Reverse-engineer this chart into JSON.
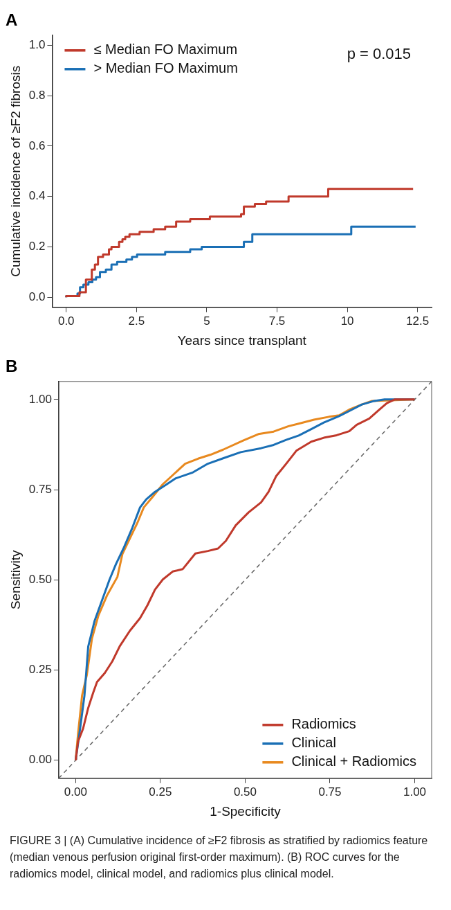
{
  "chart_data": [
    {
      "type": "step",
      "title": "A",
      "xlabel": "Years since transplant",
      "ylabel": "Cumulative incidence of ≥F2 fibrosis",
      "xlim": [
        -0.5,
        13
      ],
      "ylim": [
        -0.04,
        1.04
      ],
      "xticks": [
        {
          "value": 0,
          "label": "0.0"
        },
        2.5,
        5,
        7.5,
        10,
        12.5
      ],
      "yticks": [
        {
          "value": 0,
          "label": "0.0"
        },
        0.2,
        0.4,
        0.6,
        0.8,
        {
          "value": 1,
          "label": "1.0"
        }
      ],
      "grid": false,
      "legend": "top left",
      "marker": "none",
      "line_style": "solid",
      "annotations": [
        "p = 0.015"
      ],
      "series": [
        {
          "name": "≤ Median FO Maximum",
          "color": "#c0392b",
          "x": [
            0,
            0.47,
            0.7,
            0.91,
            1.02,
            1.13,
            1.31,
            1.52,
            1.61,
            1.88,
            2.0,
            2.1,
            2.25,
            2.61,
            3.11,
            3.34,
            3.52,
            3.91,
            4.41,
            5.11,
            6.22,
            6.32,
            6.71,
            7.11,
            7.91,
            9.32,
            10.02,
            12.34
          ],
          "values": [
            0,
            0.005,
            0.02,
            0.07,
            0.11,
            0.13,
            0.16,
            0.17,
            0.19,
            0.2,
            0.22,
            0.23,
            0.24,
            0.25,
            0.26,
            0.27,
            0.27,
            0.28,
            0.3,
            0.31,
            0.32,
            0.33,
            0.36,
            0.37,
            0.38,
            0.4,
            0.43,
            0.43
          ]
        },
        {
          "name": "> Median FO Maximum",
          "color": "#1a6fb5",
          "x": [
            0,
            0.4,
            0.49,
            0.61,
            0.79,
            0.93,
            1.06,
            1.2,
            1.41,
            1.61,
            1.81,
            2.02,
            2.14,
            2.34,
            2.52,
            3.52,
            4.41,
            4.55,
            4.82,
            6.32,
            6.62,
            10.14,
            10.23,
            12.43
          ],
          "values": [
            0,
            0.005,
            0.015,
            0.04,
            0.05,
            0.06,
            0.07,
            0.08,
            0.1,
            0.11,
            0.13,
            0.14,
            0.14,
            0.15,
            0.16,
            0.17,
            0.18,
            0.19,
            0.19,
            0.2,
            0.22,
            0.25,
            0.28,
            0.28
          ]
        }
      ]
    },
    {
      "type": "line",
      "title": "B",
      "xlabel": "1-Specificity",
      "ylabel": "Sensitivity",
      "xlim": [
        -0.05,
        1.05
      ],
      "ylim": [
        -0.05,
        1.05
      ],
      "xticks": [
        {
          "value": 0,
          "label": "0.00"
        },
        0.25,
        {
          "value": 0.5,
          "label": "0.50"
        },
        0.75,
        {
          "value": 1,
          "label": "1.00"
        }
      ],
      "yticks": [
        {
          "value": 0,
          "label": "0.00"
        },
        0.25,
        {
          "value": 0.5,
          "label": "0.50"
        },
        0.75,
        {
          "value": 1,
          "label": "1.00"
        }
      ],
      "grid": false,
      "legend": "bottom right",
      "marker": "none",
      "line_style": "solid",
      "annotations": [
        "FIGURE 3 | (A) Cumulative incidence of ≥F2 fibrosis as stratified by radiomics feature (median venous perfusion original first-order maximum). (B) ROC curves for the radiomics model, clinical model, and radiomics plus clinical model."
      ],
      "series": [
        {
          "name": "Radiomics",
          "color": "#c0392b",
          "x": [
            0,
            0.007,
            0.022,
            0.037,
            0.052,
            0.063,
            0.086,
            0.108,
            0.13,
            0.16,
            0.19,
            0.212,
            0.234,
            0.257,
            0.286,
            0.316,
            0.353,
            0.39,
            0.42,
            0.443,
            0.472,
            0.51,
            0.547,
            0.569,
            0.591,
            0.621,
            0.651,
            0.695,
            0.732,
            0.77,
            0.807,
            0.829,
            0.866,
            0.896,
            0.918,
            0.941,
            1
          ],
          "values": [
            0,
            0.052,
            0.088,
            0.145,
            0.188,
            0.217,
            0.242,
            0.274,
            0.316,
            0.359,
            0.394,
            0.43,
            0.473,
            0.501,
            0.523,
            0.53,
            0.573,
            0.58,
            0.587,
            0.608,
            0.651,
            0.687,
            0.715,
            0.744,
            0.787,
            0.822,
            0.858,
            0.883,
            0.894,
            0.901,
            0.912,
            0.93,
            0.947,
            0.972,
            0.99,
            1,
            1
          ]
        },
        {
          "name": "Clinical",
          "color": "#1a6fb5",
          "x": [
            0,
            0.011,
            0.026,
            0.037,
            0.056,
            0.078,
            0.1,
            0.119,
            0.141,
            0.167,
            0.19,
            0.208,
            0.234,
            0.264,
            0.294,
            0.346,
            0.39,
            0.435,
            0.487,
            0.547,
            0.584,
            0.621,
            0.658,
            0.695,
            0.732,
            0.777,
            0.807,
            0.844,
            0.881,
            0.911,
            1
          ],
          "values": [
            0,
            0.073,
            0.18,
            0.315,
            0.387,
            0.444,
            0.501,
            0.544,
            0.587,
            0.644,
            0.701,
            0.723,
            0.744,
            0.762,
            0.781,
            0.798,
            0.822,
            0.837,
            0.854,
            0.865,
            0.874,
            0.888,
            0.9,
            0.918,
            0.936,
            0.954,
            0.968,
            0.986,
            0.996,
            1,
            1
          ]
        },
        {
          "name": "Clinical + Radiomics",
          "color": "#e8891f",
          "x": [
            0,
            0.007,
            0.019,
            0.033,
            0.048,
            0.067,
            0.093,
            0.123,
            0.138,
            0.16,
            0.182,
            0.201,
            0.227,
            0.257,
            0.286,
            0.323,
            0.361,
            0.398,
            0.435,
            0.494,
            0.539,
            0.584,
            0.628,
            0.658,
            0.703,
            0.747,
            0.777,
            0.807,
            0.844,
            0.874,
            1
          ],
          "values": [
            0,
            0.073,
            0.18,
            0.237,
            0.337,
            0.401,
            0.458,
            0.508,
            0.572,
            0.615,
            0.658,
            0.701,
            0.73,
            0.765,
            0.79,
            0.822,
            0.836,
            0.847,
            0.861,
            0.886,
            0.904,
            0.911,
            0.926,
            0.933,
            0.944,
            0.952,
            0.956,
            0.972,
            0.986,
            0.996,
            1
          ]
        },
        {
          "color": "#666666",
          "line_style": "dashed",
          "x": [
            -0.05,
            1.05
          ],
          "values": [
            -0.05,
            1.05
          ]
        }
      ]
    }
  ]
}
